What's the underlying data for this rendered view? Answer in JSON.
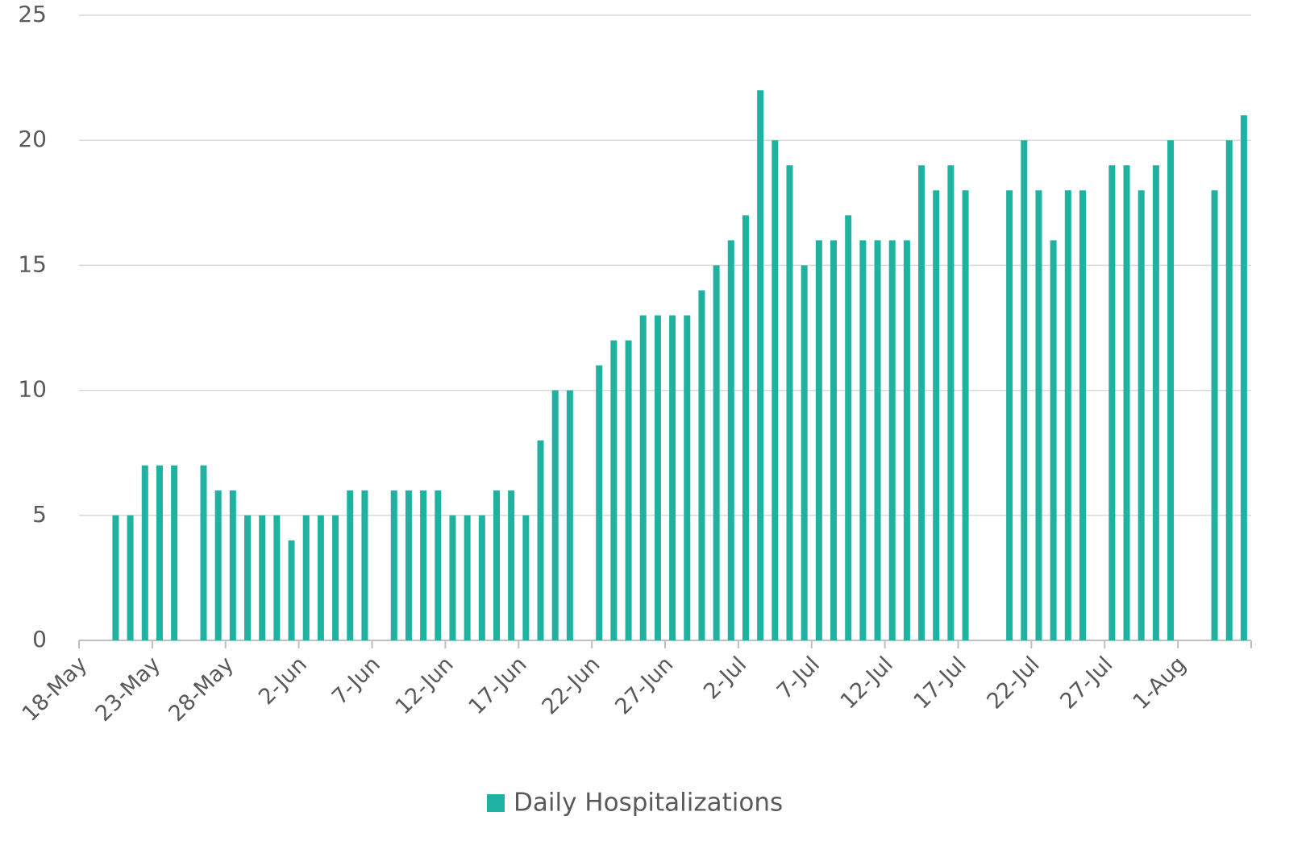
{
  "chart_data": {
    "type": "bar",
    "categories": [
      "18-May",
      null,
      null,
      null,
      null,
      "23-May",
      null,
      null,
      null,
      null,
      "28-May",
      null,
      null,
      null,
      null,
      "2-Jun",
      null,
      null,
      null,
      null,
      "7-Jun",
      null,
      null,
      null,
      null,
      "12-Jun",
      null,
      null,
      null,
      null,
      "17-Jun",
      null,
      null,
      null,
      null,
      "22-Jun",
      null,
      null,
      null,
      null,
      "27-Jun",
      null,
      null,
      null,
      null,
      "2-Jul",
      null,
      null,
      null,
      null,
      "7-Jul",
      null,
      null,
      null,
      null,
      "12-Jul",
      null,
      null,
      null,
      null,
      "17-Jul",
      null,
      null,
      null,
      null,
      "22-Jul",
      null,
      null,
      null,
      null,
      "27-Jul",
      null,
      null,
      null,
      null,
      "1-Aug",
      null,
      null,
      null,
      null
    ],
    "series": [
      {
        "name": "Daily Hospitalizations",
        "color": "#20b2a0",
        "values": [
          null,
          null,
          5,
          5,
          7,
          7,
          7,
          null,
          7,
          6,
          6,
          5,
          5,
          5,
          4,
          5,
          5,
          5,
          6,
          6,
          null,
          6,
          6,
          6,
          6,
          5,
          5,
          5,
          6,
          6,
          5,
          8,
          10,
          10,
          null,
          11,
          12,
          12,
          13,
          13,
          13,
          13,
          14,
          15,
          16,
          17,
          22,
          20,
          19,
          15,
          16,
          16,
          17,
          16,
          16,
          16,
          16,
          19,
          18,
          19,
          18,
          null,
          null,
          18,
          20,
          18,
          16,
          18,
          18,
          null,
          19,
          19,
          18,
          19,
          20,
          null,
          null,
          18,
          20,
          21
        ]
      }
    ],
    "ylim": [
      0,
      25
    ],
    "yticks": [
      0,
      5,
      10,
      15,
      20,
      25
    ],
    "grid": true,
    "legend": "bottom"
  }
}
